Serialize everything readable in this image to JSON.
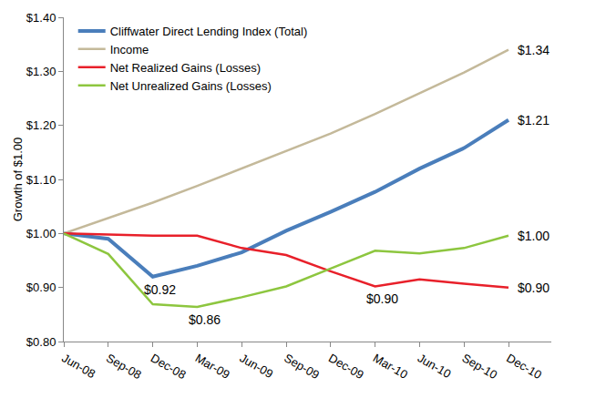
{
  "chart_data": {
    "type": "line",
    "y_label": "Growth of $1.00",
    "categories": [
      "Jun-08",
      "Sep-08",
      "Dec-08",
      "Mar-09",
      "Jun-09",
      "Sep-09",
      "Dec-09",
      "Mar-10",
      "Jun-10",
      "Sep-10",
      "Dec-10"
    ],
    "series": [
      {
        "name": "Cliffwater Direct Lending Index (Total)",
        "color": "#4a7ebb",
        "values": [
          1.0,
          0.99,
          0.92,
          0.94,
          0.965,
          1.005,
          1.04,
          1.077,
          1.12,
          1.158,
          1.21
        ]
      },
      {
        "name": "Income",
        "color": "#c4b99a",
        "values": [
          1.0,
          1.028,
          1.057,
          1.088,
          1.12,
          1.152,
          1.185,
          1.221,
          1.26,
          1.298,
          1.34
        ]
      },
      {
        "name": "Net Realized Gains (Losses)",
        "color": "#e8202a",
        "values": [
          1.0,
          0.998,
          0.996,
          0.996,
          0.973,
          0.96,
          0.93,
          0.902,
          0.915,
          0.907,
          0.9
        ]
      },
      {
        "name": "Net Unrealized Gains (Losses)",
        "color": "#8dc63f",
        "values": [
          1.0,
          0.962,
          0.869,
          0.864,
          0.882,
          0.902,
          0.935,
          0.968,
          0.963,
          0.973,
          0.996
        ]
      }
    ],
    "annotations": [
      {
        "series": "Income",
        "x": "Dec-10",
        "text": "$1.34"
      },
      {
        "series": "Cliffwater Direct Lending Index (Total)",
        "x": "Dec-10",
        "text": "$1.21"
      },
      {
        "series": "Net Unrealized Gains (Losses)",
        "x": "Dec-10",
        "text": "$1.00"
      },
      {
        "series": "Net Realized Gains (Losses)",
        "x": "Dec-10",
        "text": "$0.90"
      },
      {
        "series": "Cliffwater Direct Lending Index (Total)",
        "x": "Dec-08",
        "text": "$0.92"
      },
      {
        "series": "Net Unrealized Gains (Losses)",
        "x": "Mar-09",
        "text": "$0.86"
      },
      {
        "series": "Net Realized Gains (Losses)",
        "x": "Mar-10",
        "text": "$0.90"
      }
    ],
    "ylim": [
      0.8,
      1.4
    ],
    "yticks": [
      {
        "value": 0.8,
        "label": "$0.80"
      },
      {
        "value": 0.9,
        "label": "$0.90"
      },
      {
        "value": 1.0,
        "label": "$1.00"
      },
      {
        "value": 1.1,
        "label": "$1.10"
      },
      {
        "value": 1.2,
        "label": "$1.20"
      },
      {
        "value": 1.3,
        "label": "$1.30"
      },
      {
        "value": 1.4,
        "label": "$1.40"
      }
    ],
    "grid": false,
    "legend": "upper left"
  }
}
